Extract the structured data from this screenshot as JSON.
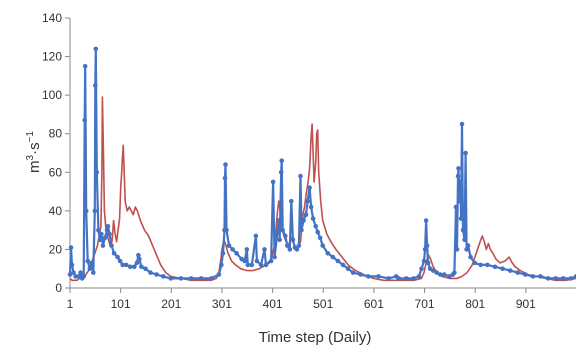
{
  "chart_data": {
    "type": "line",
    "title": "",
    "xlabel": "Time step (Daily)",
    "ylabel_base": "m",
    "ylabel_sup1": "3",
    "ylabel_mid": "·s",
    "ylabel_sup2": "−1",
    "xlim": [
      1,
      1000
    ],
    "ylim": [
      0,
      140
    ],
    "x_ticks": [
      1,
      101,
      201,
      301,
      401,
      501,
      601,
      701,
      801,
      901
    ],
    "x_tick_labels": [
      "1",
      "101",
      "201",
      "301",
      "401",
      "501",
      "601",
      "701",
      "801",
      "901"
    ],
    "y_ticks": [
      0,
      20,
      40,
      60,
      80,
      100,
      120,
      140
    ],
    "y_tick_labels": [
      "0",
      "20",
      "40",
      "60",
      "80",
      "100",
      "120",
      "140"
    ],
    "grid": false,
    "legend": "none",
    "series": [
      {
        "color": "#4472c4",
        "marker": "circle",
        "points": [
          [
            1,
            7
          ],
          [
            3,
            21
          ],
          [
            5,
            12
          ],
          [
            8,
            8
          ],
          [
            12,
            6
          ],
          [
            18,
            6
          ],
          [
            22,
            8
          ],
          [
            25,
            5
          ],
          [
            28,
            6
          ],
          [
            30,
            87
          ],
          [
            31,
            115
          ],
          [
            33,
            40
          ],
          [
            36,
            14
          ],
          [
            40,
            10
          ],
          [
            44,
            13
          ],
          [
            47,
            8
          ],
          [
            50,
            40
          ],
          [
            51,
            105
          ],
          [
            52,
            124
          ],
          [
            54,
            60
          ],
          [
            57,
            30
          ],
          [
            60,
            25
          ],
          [
            63,
            28
          ],
          [
            66,
            22
          ],
          [
            70,
            26
          ],
          [
            74,
            30
          ],
          [
            76,
            32
          ],
          [
            79,
            28
          ],
          [
            83,
            22
          ],
          [
            88,
            18
          ],
          [
            95,
            16
          ],
          [
            100,
            14
          ],
          [
            105,
            12
          ],
          [
            112,
            12
          ],
          [
            120,
            11
          ],
          [
            128,
            11
          ],
          [
            133,
            13
          ],
          [
            136,
            17
          ],
          [
            138,
            15
          ],
          [
            142,
            11
          ],
          [
            150,
            10
          ],
          [
            160,
            8
          ],
          [
            172,
            7
          ],
          [
            185,
            6
          ],
          [
            200,
            5
          ],
          [
            220,
            5
          ],
          [
            240,
            5
          ],
          [
            260,
            5
          ],
          [
            280,
            5
          ],
          [
            295,
            7
          ],
          [
            300,
            12
          ],
          [
            303,
            18
          ],
          [
            306,
            30
          ],
          [
            307,
            57
          ],
          [
            308,
            64
          ],
          [
            310,
            30
          ],
          [
            315,
            22
          ],
          [
            322,
            20
          ],
          [
            330,
            18
          ],
          [
            340,
            15
          ],
          [
            346,
            14
          ],
          [
            350,
            20
          ],
          [
            352,
            12
          ],
          [
            360,
            12
          ],
          [
            368,
            27
          ],
          [
            370,
            14
          ],
          [
            378,
            12
          ],
          [
            385,
            20
          ],
          [
            388,
            12
          ],
          [
            398,
            14
          ],
          [
            402,
            55
          ],
          [
            405,
            16
          ],
          [
            413,
            35
          ],
          [
            415,
            25
          ],
          [
            418,
            60
          ],
          [
            419,
            66
          ],
          [
            421,
            30
          ],
          [
            426,
            27
          ],
          [
            430,
            22
          ],
          [
            435,
            20
          ],
          [
            438,
            45
          ],
          [
            441,
            25
          ],
          [
            445,
            21
          ],
          [
            449,
            20
          ],
          [
            453,
            22
          ],
          [
            456,
            58
          ],
          [
            458,
            30
          ],
          [
            462,
            35
          ],
          [
            467,
            38
          ],
          [
            470,
            45
          ],
          [
            474,
            52
          ],
          [
            477,
            42
          ],
          [
            481,
            36
          ],
          [
            486,
            32
          ],
          [
            490,
            29
          ],
          [
            495,
            26
          ],
          [
            500,
            22
          ],
          [
            510,
            18
          ],
          [
            520,
            16
          ],
          [
            530,
            14
          ],
          [
            540,
            12
          ],
          [
            550,
            10
          ],
          [
            560,
            8
          ],
          [
            575,
            7
          ],
          [
            590,
            6
          ],
          [
            610,
            6
          ],
          [
            630,
            5
          ],
          [
            645,
            6
          ],
          [
            650,
            5
          ],
          [
            665,
            5
          ],
          [
            680,
            5
          ],
          [
            690,
            6
          ],
          [
            695,
            10
          ],
          [
            700,
            14
          ],
          [
            702,
            20
          ],
          [
            704,
            35
          ],
          [
            706,
            22
          ],
          [
            708,
            13
          ],
          [
            712,
            10
          ],
          [
            718,
            9
          ],
          [
            725,
            8
          ],
          [
            732,
            7
          ],
          [
            740,
            7
          ],
          [
            750,
            6
          ],
          [
            757,
            7
          ],
          [
            760,
            8
          ],
          [
            763,
            42
          ],
          [
            765,
            20
          ],
          [
            767,
            58
          ],
          [
            768,
            62
          ],
          [
            770,
            45
          ],
          [
            772,
            55
          ],
          [
            773,
            36
          ],
          [
            775,
            85
          ],
          [
            777,
            30
          ],
          [
            780,
            25
          ],
          [
            782,
            70
          ],
          [
            784,
            20
          ],
          [
            787,
            22
          ],
          [
            792,
            16
          ],
          [
            800,
            13
          ],
          [
            812,
            12
          ],
          [
            825,
            12
          ],
          [
            840,
            11
          ],
          [
            855,
            10
          ],
          [
            870,
            9
          ],
          [
            885,
            8
          ],
          [
            900,
            7
          ],
          [
            915,
            6
          ],
          [
            930,
            6
          ],
          [
            945,
            5
          ],
          [
            960,
            5
          ],
          [
            975,
            5
          ],
          [
            990,
            5
          ],
          [
            1000,
            6
          ]
        ]
      },
      {
        "color": "#c0504d",
        "marker": "none",
        "points": [
          [
            1,
            5
          ],
          [
            5,
            4
          ],
          [
            10,
            4
          ],
          [
            15,
            4
          ],
          [
            20,
            5
          ],
          [
            25,
            5
          ],
          [
            30,
            6
          ],
          [
            35,
            8
          ],
          [
            40,
            10
          ],
          [
            45,
            14
          ],
          [
            50,
            18
          ],
          [
            55,
            22
          ],
          [
            58,
            26
          ],
          [
            62,
            32
          ],
          [
            64,
            60
          ],
          [
            65,
            99
          ],
          [
            67,
            72
          ],
          [
            69,
            40
          ],
          [
            72,
            30
          ],
          [
            76,
            26
          ],
          [
            80,
            22
          ],
          [
            84,
            24
          ],
          [
            87,
            35
          ],
          [
            90,
            28
          ],
          [
            93,
            24
          ],
          [
            96,
            30
          ],
          [
            99,
            36
          ],
          [
            101,
            52
          ],
          [
            103,
            60
          ],
          [
            104,
            65
          ],
          [
            106,
            74
          ],
          [
            108,
            60
          ],
          [
            110,
            45
          ],
          [
            114,
            40
          ],
          [
            118,
            42
          ],
          [
            122,
            40
          ],
          [
            126,
            38
          ],
          [
            130,
            42
          ],
          [
            134,
            40
          ],
          [
            140,
            35
          ],
          [
            148,
            30
          ],
          [
            156,
            27
          ],
          [
            164,
            22
          ],
          [
            172,
            17
          ],
          [
            180,
            12
          ],
          [
            190,
            8
          ],
          [
            200,
            6
          ],
          [
            220,
            5
          ],
          [
            240,
            4
          ],
          [
            260,
            4
          ],
          [
            280,
            4
          ],
          [
            290,
            5
          ],
          [
            295,
            8
          ],
          [
            298,
            13
          ],
          [
            301,
            20
          ],
          [
            305,
            25
          ],
          [
            309,
            22
          ],
          [
            313,
            18
          ],
          [
            320,
            14
          ],
          [
            328,
            12
          ],
          [
            338,
            10
          ],
          [
            350,
            9
          ],
          [
            362,
            9
          ],
          [
            375,
            10
          ],
          [
            388,
            12
          ],
          [
            398,
            15
          ],
          [
            405,
            22
          ],
          [
            410,
            38
          ],
          [
            413,
            45
          ],
          [
            416,
            40
          ],
          [
            420,
            30
          ],
          [
            426,
            25
          ],
          [
            432,
            22
          ],
          [
            438,
            26
          ],
          [
            444,
            22
          ],
          [
            450,
            20
          ],
          [
            456,
            24
          ],
          [
            461,
            38
          ],
          [
            464,
            42
          ],
          [
            467,
            48
          ],
          [
            471,
            55
          ],
          [
            474,
            62
          ],
          [
            477,
            78
          ],
          [
            479,
            85
          ],
          [
            481,
            70
          ],
          [
            483,
            55
          ],
          [
            486,
            65
          ],
          [
            488,
            80
          ],
          [
            490,
            82
          ],
          [
            492,
            60
          ],
          [
            496,
            45
          ],
          [
            500,
            35
          ],
          [
            508,
            28
          ],
          [
            516,
            24
          ],
          [
            526,
            20
          ],
          [
            538,
            16
          ],
          [
            550,
            12
          ],
          [
            565,
            9
          ],
          [
            580,
            7
          ],
          [
            600,
            5
          ],
          [
            620,
            4
          ],
          [
            640,
            4
          ],
          [
            660,
            4
          ],
          [
            680,
            4
          ],
          [
            695,
            5
          ],
          [
            700,
            8
          ],
          [
            705,
            14
          ],
          [
            709,
            17
          ],
          [
            713,
            15
          ],
          [
            718,
            11
          ],
          [
            725,
            8
          ],
          [
            735,
            6
          ],
          [
            750,
            5
          ],
          [
            765,
            5
          ],
          [
            775,
            6
          ],
          [
            785,
            8
          ],
          [
            795,
            12
          ],
          [
            803,
            18
          ],
          [
            808,
            22
          ],
          [
            812,
            25
          ],
          [
            815,
            27
          ],
          [
            819,
            24
          ],
          [
            823,
            20
          ],
          [
            827,
            23
          ],
          [
            831,
            20
          ],
          [
            836,
            18
          ],
          [
            842,
            15
          ],
          [
            850,
            13
          ],
          [
            860,
            14
          ],
          [
            868,
            16
          ],
          [
            874,
            13
          ],
          [
            880,
            11
          ],
          [
            890,
            9
          ],
          [
            905,
            7
          ],
          [
            920,
            6
          ],
          [
            940,
            5
          ],
          [
            960,
            4
          ],
          [
            980,
            4
          ],
          [
            1000,
            5
          ]
        ]
      }
    ]
  }
}
